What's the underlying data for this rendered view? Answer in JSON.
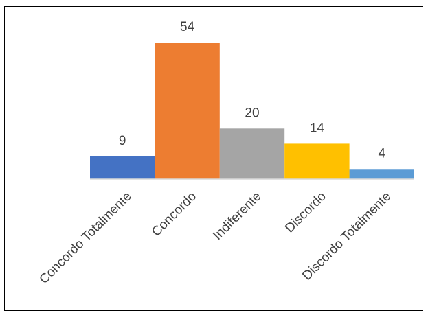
{
  "chart_data": {
    "type": "bar",
    "categories": [
      "Concordo Totalmente",
      "Concordo",
      "Indiferente",
      "Discordo",
      "Discordo Totalmente"
    ],
    "values": [
      9,
      54,
      20,
      14,
      4
    ],
    "colors": [
      "#4472C4",
      "#ED7D31",
      "#A5A5A5",
      "#FFC000",
      "#5B9BD5"
    ],
    "title": "",
    "xlabel": "",
    "ylabel": "",
    "ylim": [
      0,
      54
    ],
    "grid": false,
    "legend": "none",
    "data_labels": true
  }
}
